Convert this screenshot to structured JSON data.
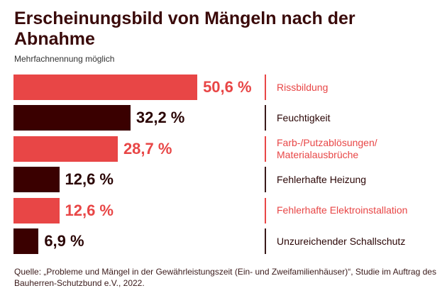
{
  "chart_data": {
    "type": "bar",
    "orientation": "horizontal",
    "title": "Erscheinungsbild von Mängeln nach der Abnahme",
    "subtitle": "Mehrfachnennung möglich",
    "unit": "%",
    "categories": [
      "Rissbildung",
      "Feuchtigkeit",
      "Farb-/Putzablösungen/ Materialausbrüche",
      "Fehlerhafte Heizung",
      "Fehlerhafte Elektroinstallation",
      "Unzureichender Schallschutz"
    ],
    "values": [
      50.6,
      32.2,
      28.7,
      12.6,
      12.6,
      6.9
    ],
    "value_labels": [
      "50,6 %",
      "32,2 %",
      "28,7 %",
      "12,6 %",
      "12,6 %",
      "6,9 %"
    ],
    "colors": [
      "#e84646",
      "#3a0000",
      "#e84646",
      "#3a0000",
      "#e84646",
      "#3a0000"
    ],
    "grid": false,
    "legend": "none"
  },
  "source": "Quelle: „Probleme und Mängel in der Gewährleistungszeit (Ein- und Zweifamilienhäuser)“, Studie im Auftrag des Bauherren-Schutzbund e.V., 2022."
}
